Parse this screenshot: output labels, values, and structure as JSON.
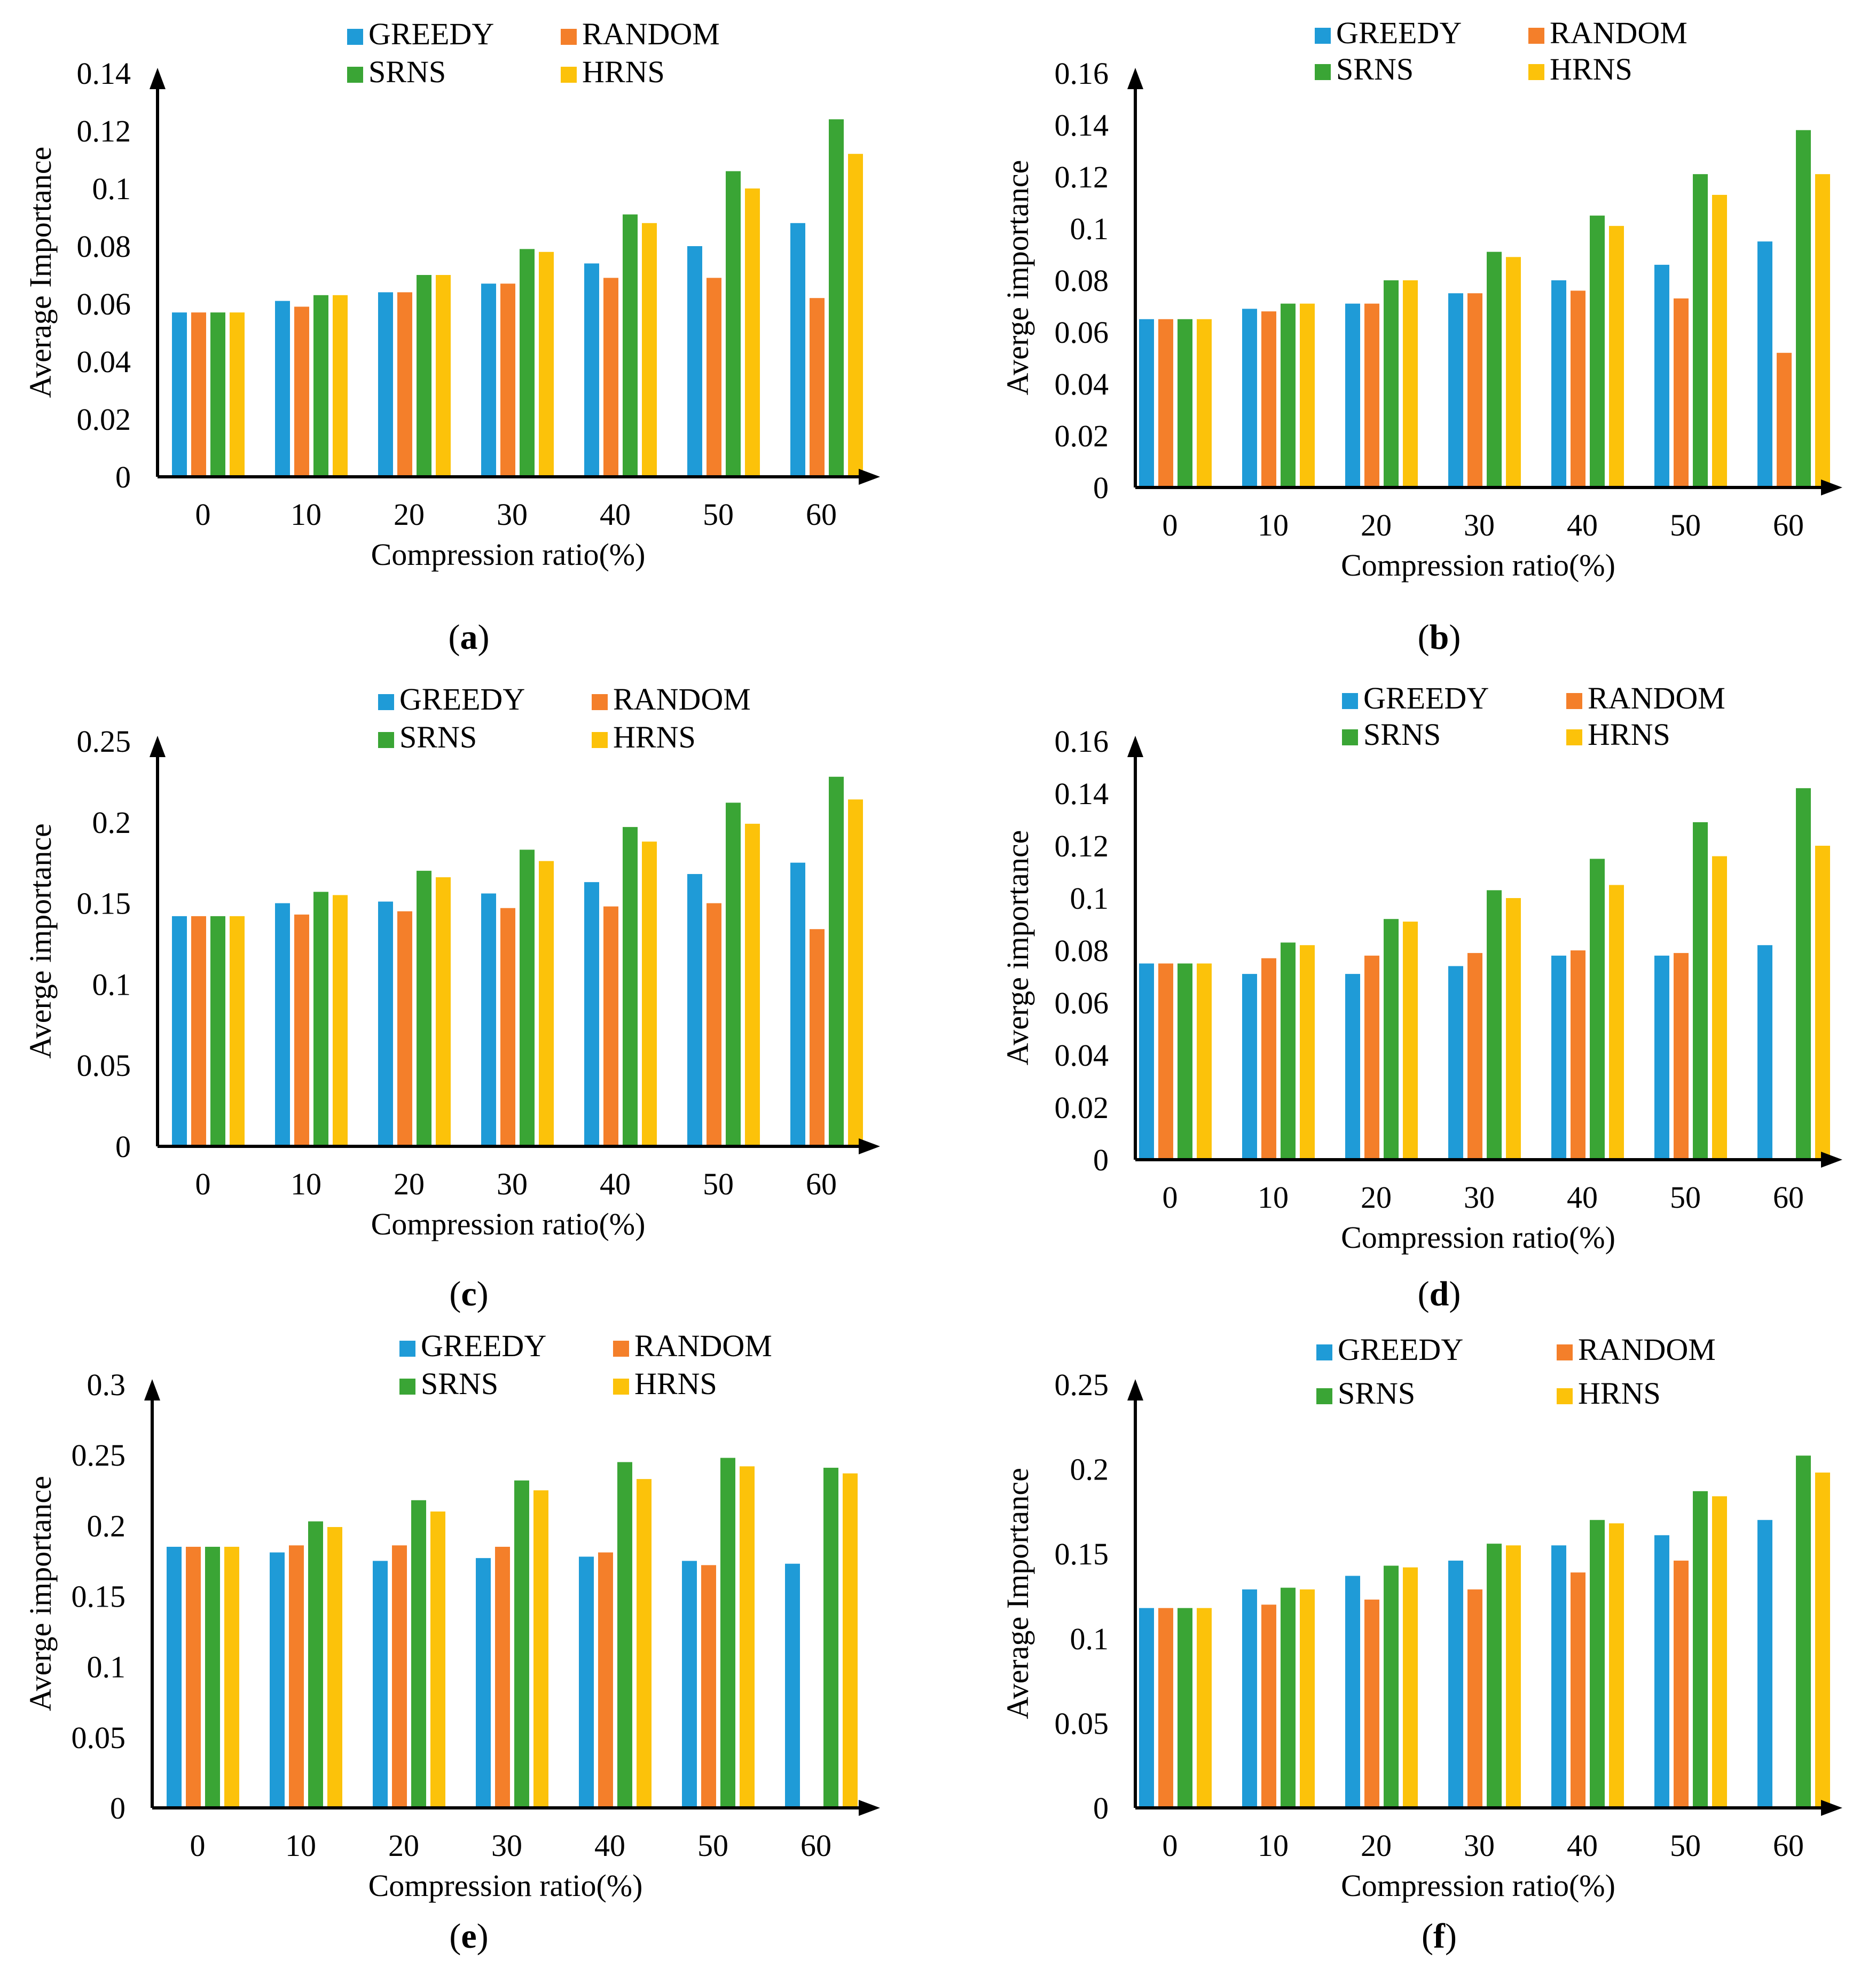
{
  "colors": {
    "GREEDY": "#1f9bd7",
    "RANDOM": "#f47f2a",
    "SRNS": "#3aa535",
    "HRNS": "#fcc20a",
    "axis": "#000000"
  },
  "chart_data": [
    {
      "type": "bar",
      "panel": "(a)",
      "panel_letter": "a",
      "categories": [
        "0",
        "10",
        "20",
        "30",
        "40",
        "50",
        "60"
      ],
      "series": [
        {
          "name": "GREEDY",
          "values": [
            0.057,
            0.061,
            0.064,
            0.067,
            0.074,
            0.08,
            0.088
          ]
        },
        {
          "name": "RANDOM",
          "values": [
            0.057,
            0.059,
            0.064,
            0.067,
            0.069,
            0.069,
            0.062
          ]
        },
        {
          "name": "SRNS",
          "values": [
            0.057,
            0.063,
            0.07,
            0.079,
            0.091,
            0.106,
            0.124
          ]
        },
        {
          "name": "HRNS",
          "values": [
            0.057,
            0.063,
            0.07,
            0.078,
            0.088,
            0.1,
            0.112
          ]
        }
      ],
      "xlabel": "Compression ratio(%)",
      "ylabel": "Average Importance",
      "ylim": [
        0,
        0.14
      ],
      "yticks": [
        {
          "v": 0,
          "label": "0"
        },
        {
          "v": 0.02,
          "label": "0.02"
        },
        {
          "v": 0.04,
          "label": "0.04"
        },
        {
          "v": 0.06,
          "label": "0.06"
        },
        {
          "v": 0.08,
          "label": "0.08"
        },
        {
          "v": 0.1,
          "label": "0.1"
        },
        {
          "v": 0.12,
          "label": "0.12"
        },
        {
          "v": 0.14,
          "label": "0.14"
        }
      ],
      "legend": [
        "GREEDY",
        "RANDOM",
        "SRNS",
        "HRNS"
      ],
      "legend_position": "top"
    },
    {
      "type": "bar",
      "panel": "(b)",
      "panel_letter": "b",
      "categories": [
        "0",
        "10",
        "20",
        "30",
        "40",
        "50",
        "60"
      ],
      "series": [
        {
          "name": "GREEDY",
          "values": [
            0.065,
            0.069,
            0.071,
            0.075,
            0.08,
            0.086,
            0.095
          ]
        },
        {
          "name": "RANDOM",
          "values": [
            0.065,
            0.068,
            0.071,
            0.075,
            0.076,
            0.073,
            0.052
          ]
        },
        {
          "name": "SRNS",
          "values": [
            0.065,
            0.071,
            0.08,
            0.091,
            0.105,
            0.121,
            0.138
          ]
        },
        {
          "name": "HRNS",
          "values": [
            0.065,
            0.071,
            0.08,
            0.089,
            0.101,
            0.113,
            0.121
          ]
        }
      ],
      "xlabel": "Compression ratio(%)",
      "ylabel": "Averge importance",
      "ylim": [
        0,
        0.16
      ],
      "yticks": [
        {
          "v": 0,
          "label": "0"
        },
        {
          "v": 0.02,
          "label": "0.02"
        },
        {
          "v": 0.04,
          "label": "0.04"
        },
        {
          "v": 0.06,
          "label": "0.06"
        },
        {
          "v": 0.08,
          "label": "0.08"
        },
        {
          "v": 0.1,
          "label": "0.1"
        },
        {
          "v": 0.12,
          "label": "0.12"
        },
        {
          "v": 0.14,
          "label": "0.14"
        },
        {
          "v": 0.16,
          "label": "0.16"
        }
      ],
      "legend": [
        "GREEDY",
        "RANDOM",
        "SRNS",
        "HRNS"
      ],
      "legend_position": "top"
    },
    {
      "type": "bar",
      "panel": "(c)",
      "panel_letter": "c",
      "categories": [
        "0",
        "10",
        "20",
        "30",
        "40",
        "50",
        "60"
      ],
      "series": [
        {
          "name": "GREEDY",
          "values": [
            0.142,
            0.15,
            0.151,
            0.156,
            0.163,
            0.168,
            0.175
          ]
        },
        {
          "name": "RANDOM",
          "values": [
            0.142,
            0.143,
            0.145,
            0.147,
            0.148,
            0.15,
            0.134
          ]
        },
        {
          "name": "SRNS",
          "values": [
            0.142,
            0.157,
            0.17,
            0.183,
            0.197,
            0.212,
            0.228
          ]
        },
        {
          "name": "HRNS",
          "values": [
            0.142,
            0.155,
            0.166,
            0.176,
            0.188,
            0.199,
            0.214
          ]
        }
      ],
      "xlabel": "Compression ratio(%)",
      "ylabel": "Averge importance",
      "ylim": [
        0,
        0.25
      ],
      "yticks": [
        {
          "v": 0,
          "label": "0"
        },
        {
          "v": 0.05,
          "label": "0.05"
        },
        {
          "v": 0.1,
          "label": "0.1"
        },
        {
          "v": 0.15,
          "label": "0.15"
        },
        {
          "v": 0.2,
          "label": "0.2"
        },
        {
          "v": 0.25,
          "label": "0.25"
        }
      ],
      "legend": [
        "GREEDY",
        "RANDOM",
        "SRNS",
        "HRNS"
      ],
      "legend_position": "top"
    },
    {
      "type": "bar",
      "panel": "(d)",
      "panel_letter": "d",
      "categories": [
        "0",
        "10",
        "20",
        "30",
        "40",
        "50",
        "60"
      ],
      "series": [
        {
          "name": "GREEDY",
          "values": [
            0.075,
            0.071,
            0.071,
            0.074,
            0.078,
            0.078,
            0.082
          ]
        },
        {
          "name": "RANDOM",
          "values": [
            0.075,
            0.077,
            0.078,
            0.079,
            0.08,
            0.079,
            null
          ]
        },
        {
          "name": "SRNS",
          "values": [
            0.075,
            0.083,
            0.092,
            0.103,
            0.115,
            0.129,
            0.142
          ]
        },
        {
          "name": "HRNS",
          "values": [
            0.075,
            0.082,
            0.091,
            0.1,
            0.105,
            0.116,
            0.12
          ]
        }
      ],
      "xlabel": "Compression ratio(%)",
      "ylabel": "Averge importance",
      "ylim": [
        0,
        0.16
      ],
      "yticks": [
        {
          "v": 0,
          "label": "0"
        },
        {
          "v": 0.02,
          "label": "0.02"
        },
        {
          "v": 0.04,
          "label": "0.04"
        },
        {
          "v": 0.06,
          "label": "0.06"
        },
        {
          "v": 0.08,
          "label": "0.08"
        },
        {
          "v": 0.1,
          "label": "0.1"
        },
        {
          "v": 0.12,
          "label": "0.12"
        },
        {
          "v": 0.14,
          "label": "0.14"
        },
        {
          "v": 0.16,
          "label": "0.16"
        }
      ],
      "legend": [
        "GREEDY",
        "RANDOM",
        "SRNS",
        "HRNS"
      ],
      "legend_position": "top"
    },
    {
      "type": "bar",
      "panel": "(e)",
      "panel_letter": "e",
      "categories": [
        "0",
        "10",
        "20",
        "30",
        "40",
        "50",
        "60"
      ],
      "series": [
        {
          "name": "GREEDY",
          "values": [
            0.185,
            0.181,
            0.175,
            0.177,
            0.178,
            0.175,
            0.173
          ]
        },
        {
          "name": "RANDOM",
          "values": [
            0.185,
            0.186,
            0.186,
            0.185,
            0.181,
            0.172,
            null
          ]
        },
        {
          "name": "SRNS",
          "values": [
            0.185,
            0.203,
            0.218,
            0.232,
            0.245,
            0.248,
            0.241
          ]
        },
        {
          "name": "HRNS",
          "values": [
            0.185,
            0.199,
            0.21,
            0.225,
            0.233,
            0.242,
            0.237
          ]
        }
      ],
      "xlabel": "Compression ratio(%)",
      "ylabel": "Averge importance",
      "ylim": [
        0,
        0.3
      ],
      "yticks": [
        {
          "v": 0,
          "label": "0"
        },
        {
          "v": 0.05,
          "label": "0.05"
        },
        {
          "v": 0.1,
          "label": "0.1"
        },
        {
          "v": 0.15,
          "label": "0.15"
        },
        {
          "v": 0.2,
          "label": "0.2"
        },
        {
          "v": 0.25,
          "label": "0.25"
        },
        {
          "v": 0.3,
          "label": "0.3"
        }
      ],
      "legend": [
        "GREEDY",
        "RANDOM",
        "SRNS",
        "HRNS"
      ],
      "legend_position": "top"
    },
    {
      "type": "bar",
      "panel": "(f)",
      "panel_letter": "f",
      "categories": [
        "0",
        "10",
        "20",
        "30",
        "40",
        "50",
        "60"
      ],
      "series": [
        {
          "name": "GREEDY",
          "values": [
            0.118,
            0.129,
            0.137,
            0.146,
            0.155,
            0.161,
            0.17
          ]
        },
        {
          "name": "RANDOM",
          "values": [
            0.118,
            0.12,
            0.123,
            0.129,
            0.139,
            0.146,
            null
          ]
        },
        {
          "name": "SRNS",
          "values": [
            0.118,
            0.13,
            0.143,
            0.156,
            0.17,
            0.187,
            0.208
          ]
        },
        {
          "name": "HRNS",
          "values": [
            0.118,
            0.129,
            0.142,
            0.155,
            0.168,
            0.184,
            0.198
          ]
        }
      ],
      "xlabel": "Compression ratio(%)",
      "ylabel": "Average Importance",
      "ylim": [
        0,
        0.25
      ],
      "yticks": [
        {
          "v": 0,
          "label": "0"
        },
        {
          "v": 0.05,
          "label": "0.05"
        },
        {
          "v": 0.1,
          "label": "0.1"
        },
        {
          "v": 0.15,
          "label": "0.15"
        },
        {
          "v": 0.2,
          "label": "0.2"
        },
        {
          "v": 0.25,
          "label": "0.25"
        }
      ],
      "legend": [
        "GREEDY",
        "RANDOM",
        "SRNS",
        "HRNS"
      ],
      "legend_position": "top"
    }
  ]
}
